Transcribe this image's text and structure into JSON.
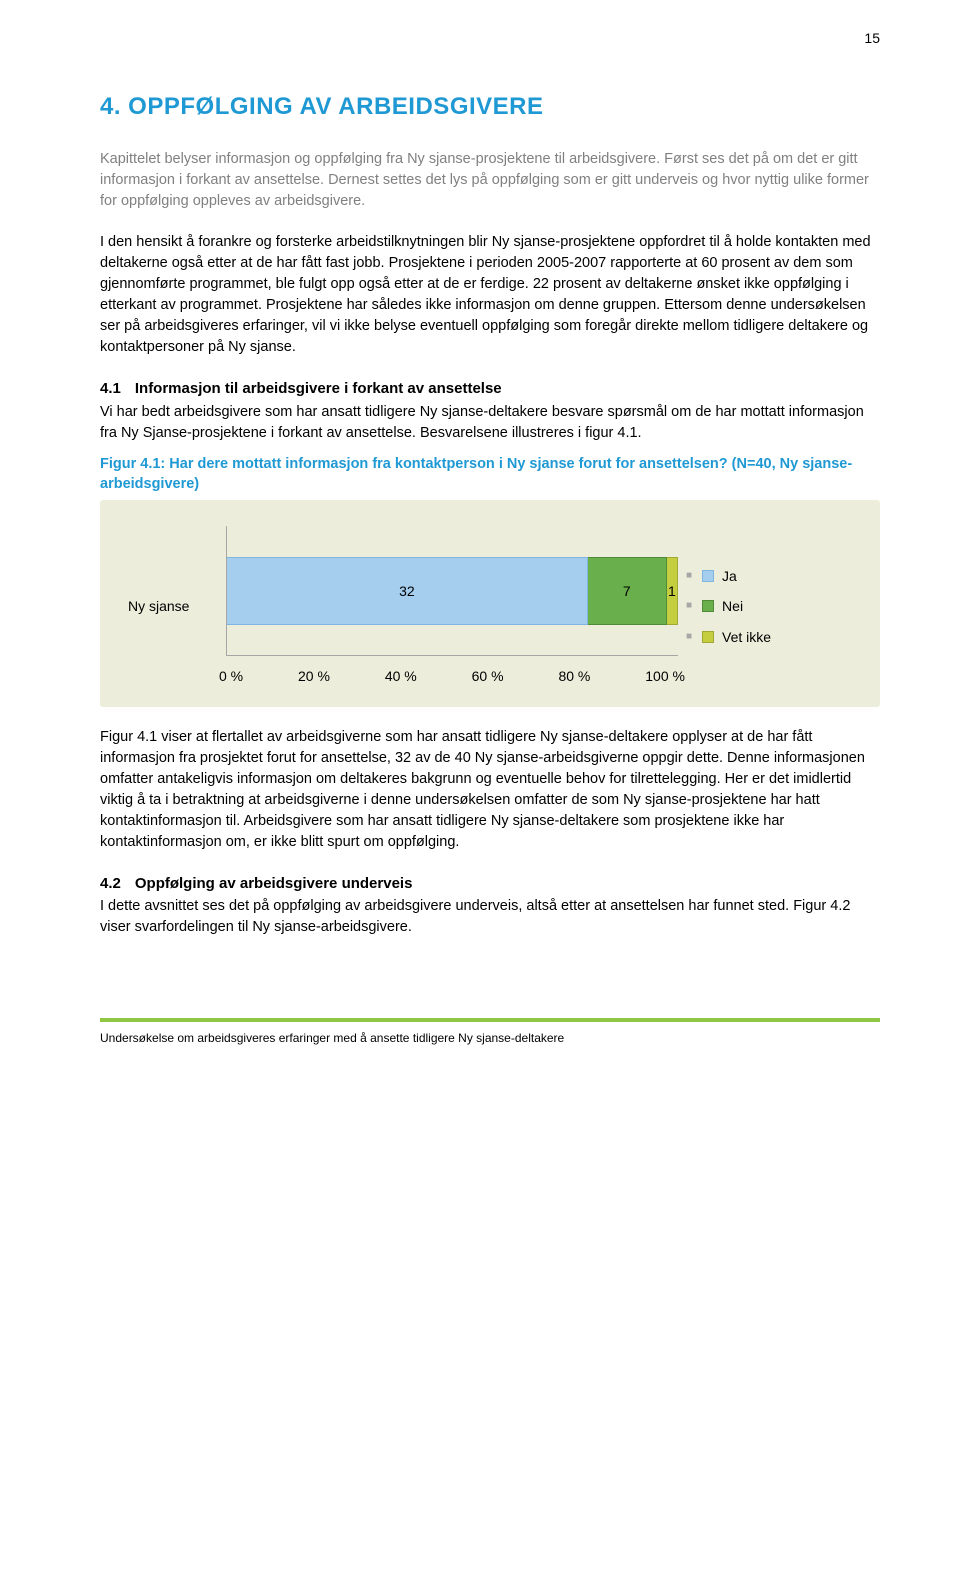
{
  "page_number": "15",
  "heading": "4.   OPPFØLGING AV ARBEIDSGIVERE",
  "intro_p1": "Kapittelet belyser informasjon og oppfølging fra Ny sjanse-prosjektene til arbeidsgivere. Først ses det på om det er gitt informasjon i forkant av ansettelse. Dernest settes det lys på oppfølging som er gitt underveis og hvor nyttig ulike former for oppfølging oppleves av arbeidsgivere.",
  "body_p1": "I den hensikt å forankre og forsterke arbeidstilknytningen blir Ny sjanse-prosjektene oppfordret til å holde kontakten med deltakerne også etter at de har fått fast jobb. Prosjektene i perioden 2005-2007 rapporterte at 60 prosent av dem som gjennomførte programmet, ble fulgt opp også etter at de er ferdige. 22 prosent av deltakerne ønsket ikke oppfølging i etterkant av programmet. Prosjektene har således ikke informasjon om denne gruppen. Ettersom denne undersøkelsen ser på arbeidsgiveres erfaringer, vil vi ikke belyse eventuell oppfølging som foregår direkte mellom tidligere deltakere og kontaktpersoner på Ny sjanse.",
  "section_41": {
    "num": "4.1",
    "title": "Informasjon til arbeidsgivere i forkant av ansettelse",
    "body": "Vi har bedt arbeidsgivere som har ansatt tidligere Ny sjanse-deltakere besvare spørsmål om de har mottatt informasjon fra Ny Sjanse-prosjektene i forkant av ansettelse. Besvarelsene illustreres i figur 4.1."
  },
  "figure_41": {
    "title": "Figur 4.1: Har dere mottatt informasjon fra kontaktperson i Ny sjanse forut for ansettelsen? (N=40, Ny sjanse-arbeidsgivere)",
    "category_label": "Ny sjanse",
    "series": [
      {
        "label": "Ja",
        "value": 32,
        "color": "#a5cdee",
        "border": "#7fb5e0",
        "pct": 80
      },
      {
        "label": "Nei",
        "value": 7,
        "color": "#69af4c",
        "border": "#4f8b38",
        "pct": 17.5
      },
      {
        "label": "Vet ikke",
        "value": 1,
        "color": "#c4ce3e",
        "border": "#a0a931",
        "pct": 2.5
      }
    ],
    "legend_bullet_color": "#a6a6a6",
    "axis_ticks": [
      "0 %",
      "20 %",
      "40 %",
      "60 %",
      "80 %",
      "100 %"
    ],
    "background_color": "#ededdb"
  },
  "body_p2": "Figur 4.1 viser at flertallet av arbeidsgiverne som har ansatt tidligere Ny sjanse-deltakere opplyser at de har fått informasjon fra prosjektet forut for ansettelse, 32 av de 40 Ny sjanse-arbeidsgiverne oppgir dette. Denne informasjonen omfatter antakeligvis informasjon om deltakeres bakgrunn og eventuelle behov for tilrettelegging. Her er det imidlertid viktig å ta i betraktning at arbeidsgiverne i denne undersøkelsen omfatter de som Ny sjanse-prosjektene har hatt kontaktinformasjon til. Arbeidsgivere som har ansatt tidligere Ny sjanse-deltakere som prosjektene ikke har kontaktinformasjon om, er ikke blitt spurt om oppfølging.",
  "section_42": {
    "num": "4.2",
    "title": "Oppfølging av arbeidsgivere underveis",
    "body": "I dette avsnittet ses det på oppfølging av arbeidsgivere underveis, altså etter at ansettelsen har funnet sted. Figur 4.2 viser svarfordelingen til Ny sjanse-arbeidsgivere."
  },
  "footer": "Undersøkelse om arbeidsgiveres erfaringer med å ansette tidligere Ny sjanse-deltakere",
  "footer_bar_color": "#8fc642"
}
